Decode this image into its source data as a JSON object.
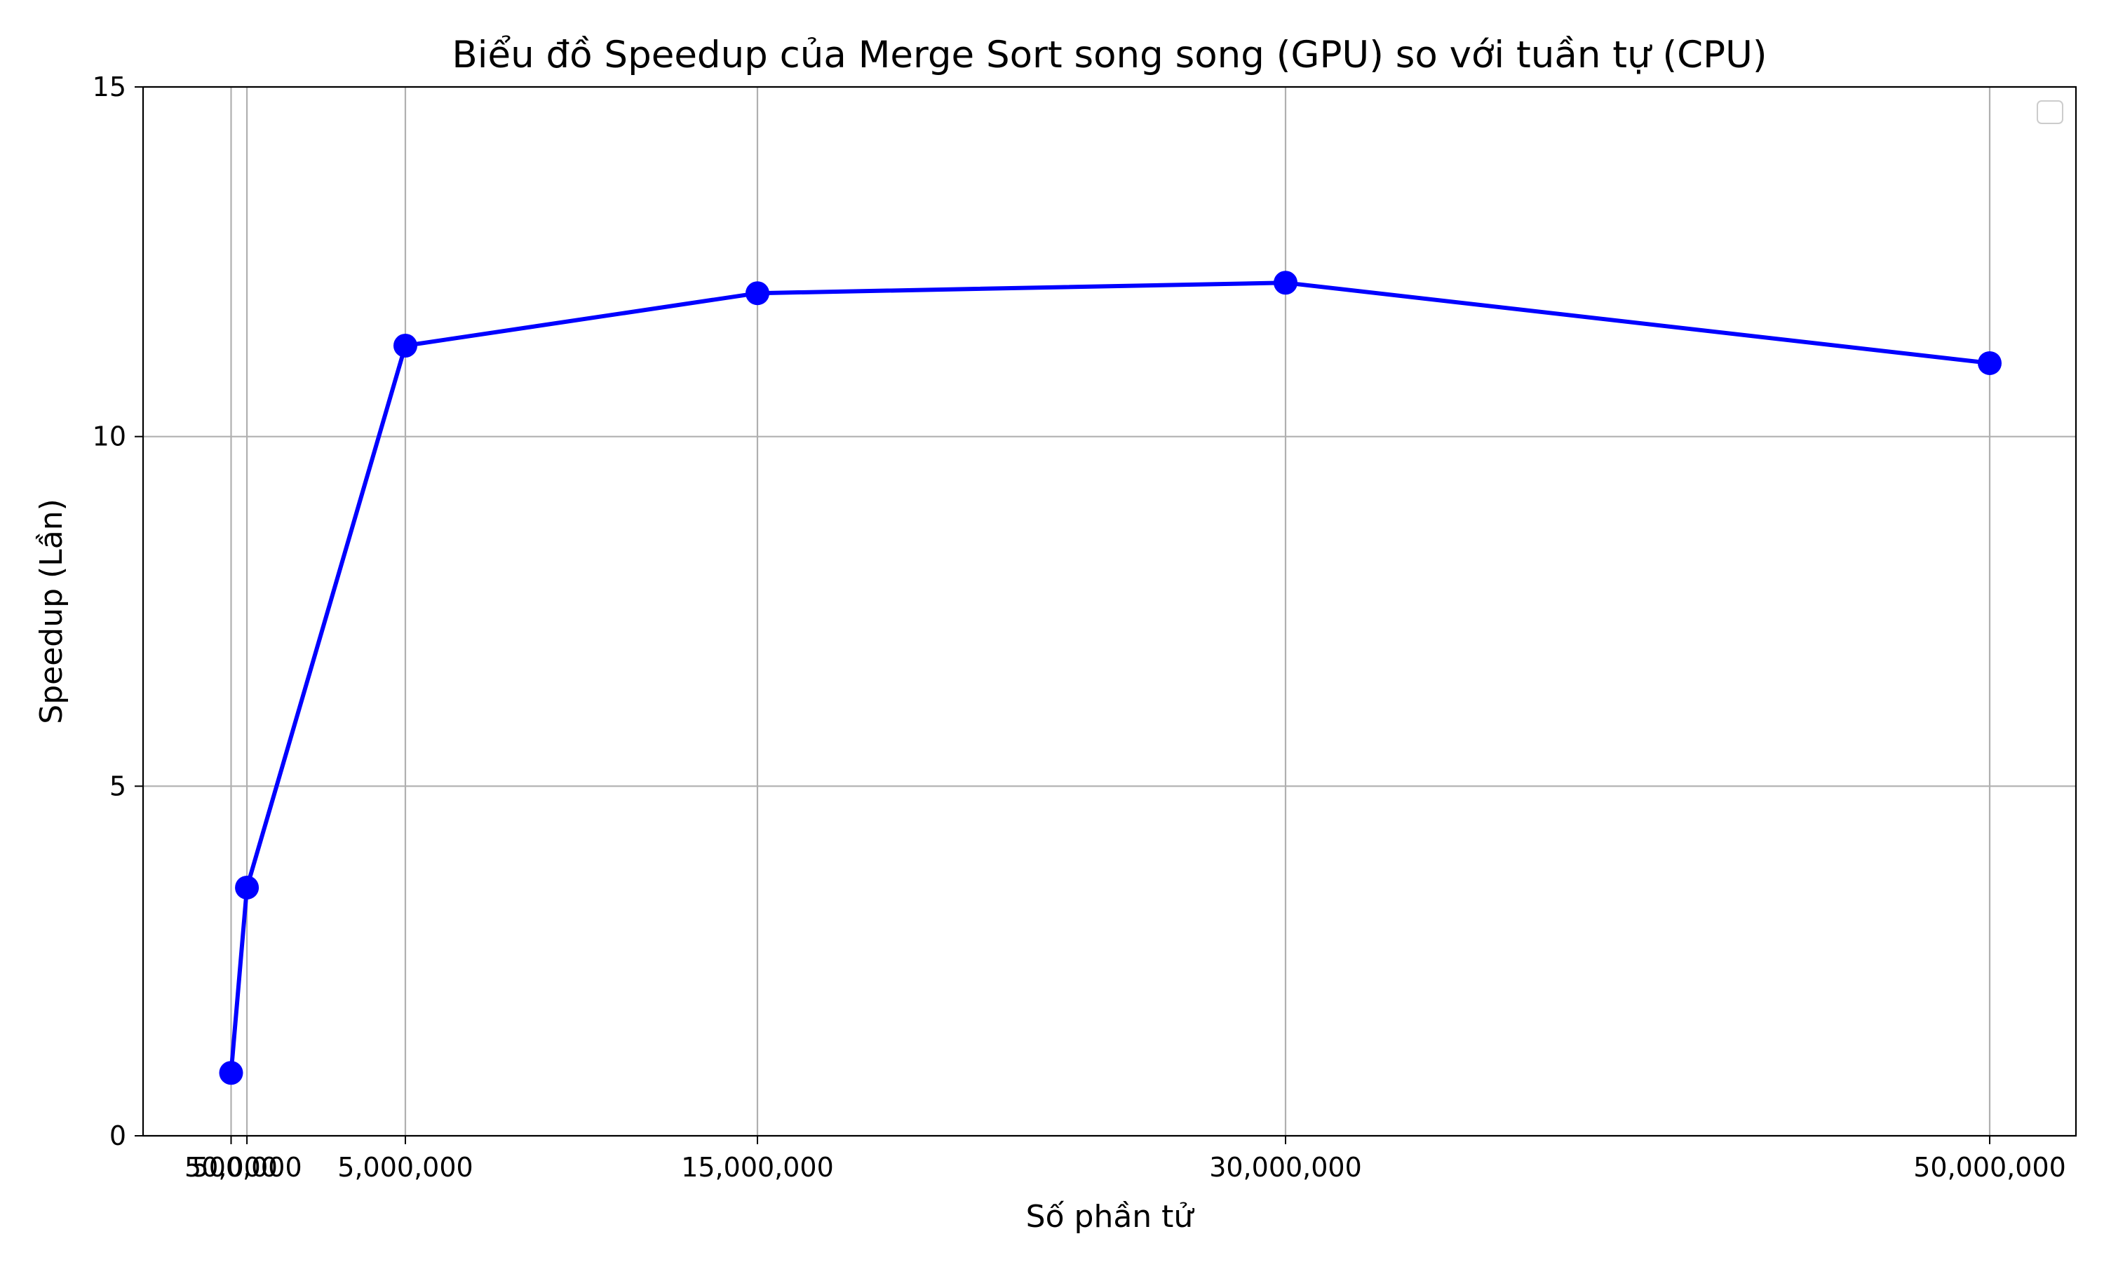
{
  "chart_data": {
    "type": "line",
    "title": "Biểu đồ Speedup của Merge Sort song song (GPU) so với tuần tự (CPU)",
    "xlabel": "Số phần tử",
    "ylabel": "Speedup (Lần)",
    "x": [
      50000,
      500000,
      5000000,
      15000000,
      30000000,
      50000000
    ],
    "x_tick_labels": [
      "50,000",
      "500,000",
      "5,000,000",
      "15,000,000",
      "30,000,000",
      "50,000,000"
    ],
    "y_ticks": [
      0,
      5,
      10,
      15
    ],
    "y_tick_labels": [
      "0",
      "5",
      "10",
      "15"
    ],
    "xlim": [
      -2450000,
      52450000
    ],
    "ylim": [
      0,
      15
    ],
    "grid": true,
    "legend": "top-right, empty",
    "series": [
      {
        "values": [
          0.9,
          3.55,
          11.3,
          12.05,
          12.2,
          11.05
        ],
        "color": "#0000ff",
        "marker": "circle"
      }
    ]
  }
}
